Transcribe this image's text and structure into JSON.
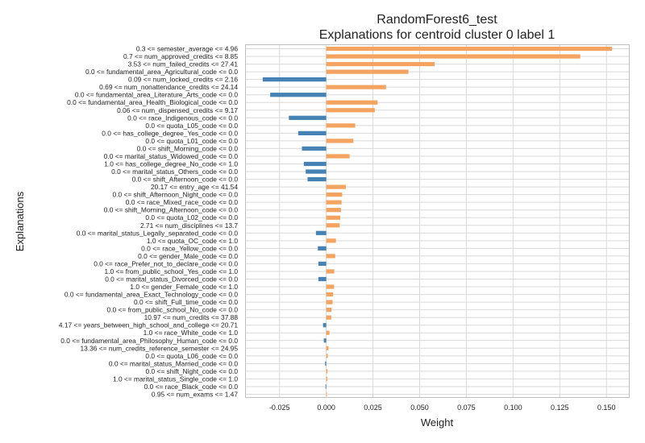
{
  "chart_data": {
    "type": "bar",
    "orientation": "horizontal",
    "title": "RandomForest6_test",
    "subtitle": "Explanations for centroid cluster 0 label 1",
    "xlabel": "Weight",
    "ylabel": "Explanations",
    "xlim": [
      -0.043,
      0.162
    ],
    "xticks": [
      -0.025,
      0.0,
      0.025,
      0.05,
      0.075,
      0.1,
      0.125,
      0.15
    ],
    "xtick_labels": [
      "-0.025",
      "0.000",
      "0.025",
      "0.050",
      "0.075",
      "0.100",
      "0.125",
      "0.150"
    ],
    "grid": true,
    "legend": "none",
    "colors": {
      "positive": "#f4a460",
      "negative": "#4682b4",
      "grid": "#d9d9d9",
      "frame": "#bfbfbf"
    },
    "categories": [
      "0.3 <= semester_average <= 4.96",
      "0.7 <= num_approved_credits <= 8.85",
      "3.53 <= num_failed_credits <= 27.41",
      "0.0 <= fundamental_area_Agricultural_code <= 0.0",
      "0.09 <= num_locked_credits <= 2.16",
      "0.69 <= num_nonattendance_credits <= 24.14",
      "0.0 <= fundamental_area_Literature_Arts_code <= 0.0",
      "0.0 <= fundamental_area_Health_Biological_code <= 0.0",
      "0.06 <= num_dispensed_credits <= 9.17",
      "0.0 <= race_Indigenous_code <= 0.0",
      "0.0 <= quota_L05_code <= 0.0",
      "0.0 <= has_college_degree_Yes_code <= 0.0",
      "0.0 <= quota_L01_code <= 0.0",
      "0.0 <= shift_Morning_code <= 0.0",
      "0.0 <= marital_status_Widowed_code <= 0.0",
      "1.0 <= has_college_degree_No_code <= 1.0",
      "0.0 <= marital_status_Others_code <= 0.0",
      "0.0 <= shift_Afternoon_code <= 0.0",
      "20.17 <= entry_age <= 41.54",
      "0.0 <= shift_Afternoon_Night_code <= 0.0",
      "0.0 <= race_Mixed_race_code <= 0.0",
      "0.0 <= shift_Morning_Afternoon_code <= 0.0",
      "0.0 <= quota_L02_code <= 0.0",
      "2.71 <= num_disciplines <= 13.7",
      "0.0 <= marital_status_Legally_separated_code <= 0.0",
      "1.0 <= quota_OC_code <= 1.0",
      "0.0 <= race_Yellow_code <= 0.0",
      "0.0 <= gender_Male_code <= 0.0",
      "0.0 <= race_Prefer_not_to_declare_code <= 0.0",
      "1.0 <= from_public_school_Yes_code <= 1.0",
      "0.0 <= marital_status_Divorced_code <= 0.0",
      "1.0 <= gender_Female_code <= 1.0",
      "0.0 <= fundamental_area_Exact_Technology_code <= 0.0",
      "0.0 <= shift_Full_time_code <= 0.0",
      "0.0 <= from_public_school_No_code <= 0.0",
      "10.97 <= num_credits <= 37.88",
      "4.17 <= years_between_high_school_and_college <= 20.71",
      "1.0 <= race_White_code <= 1.0",
      "0.0 <= fundamental_area_Philosophy_Human_code <= 0.0",
      "13.36 <= num_credits_reference_semester <= 24.95",
      "0.0 <= quota_L06_code <= 0.0",
      "0.0 <= marital_status_Married_code <= 0.0",
      "0.0 <= shift_Night_code <= 0.0",
      "1.0 <= marital_status_Single_code <= 1.0",
      "0.0 <= race_Black_code <= 0.0",
      "0.95 <= num_exams <= 1.47"
    ],
    "values": [
      0.153,
      0.136,
      0.058,
      0.044,
      -0.034,
      0.032,
      -0.03,
      0.0275,
      0.026,
      -0.02,
      0.0155,
      -0.015,
      0.0145,
      -0.013,
      0.0125,
      -0.012,
      -0.011,
      -0.01,
      0.0105,
      0.0085,
      0.0082,
      0.0079,
      0.0075,
      0.0072,
      -0.0055,
      0.0052,
      -0.0045,
      0.0048,
      -0.0042,
      0.0043,
      -0.0042,
      0.0042,
      0.0037,
      0.0034,
      0.0028,
      0.0027,
      -0.0017,
      0.0017,
      -0.0013,
      0.0012,
      0.0008,
      -0.0006,
      0.0007,
      0.0006,
      -0.0004,
      0.0003
    ]
  }
}
